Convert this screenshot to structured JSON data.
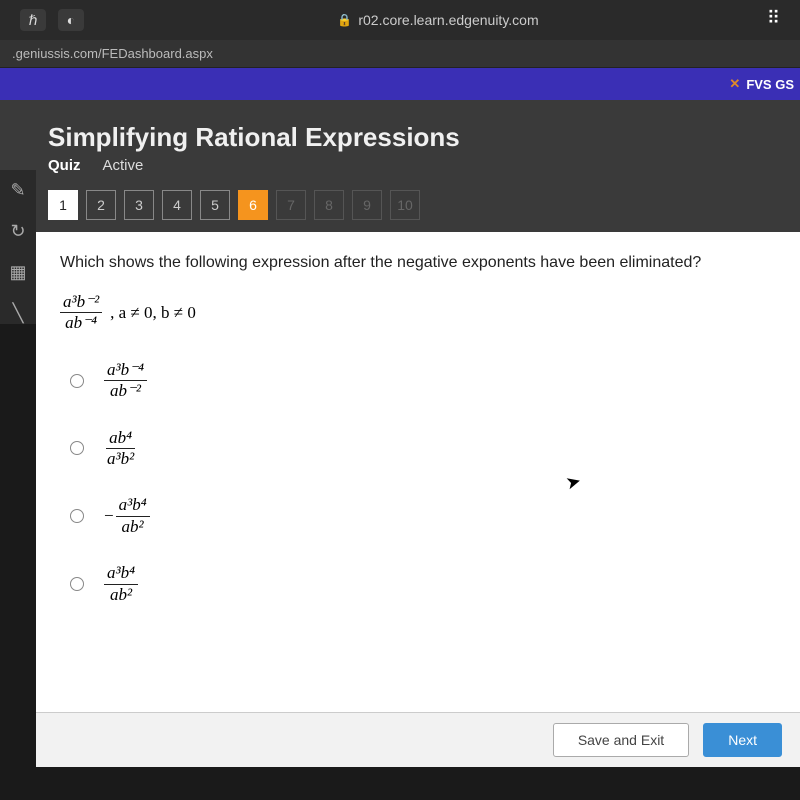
{
  "browser": {
    "url_display": "r02.core.learn.edgenuity.com",
    "address_bar": ".geniussis.com/FEDashboard.aspx"
  },
  "top_strip": {
    "label": "FVS GS"
  },
  "header": {
    "title": "Simplifying Rational Expressions",
    "sub_bold": "Quiz",
    "sub_reg": "Active",
    "questions": [
      {
        "n": "1",
        "state": "active-white"
      },
      {
        "n": "2",
        "state": ""
      },
      {
        "n": "3",
        "state": ""
      },
      {
        "n": "4",
        "state": ""
      },
      {
        "n": "5",
        "state": ""
      },
      {
        "n": "6",
        "state": "current"
      },
      {
        "n": "7",
        "state": "future"
      },
      {
        "n": "8",
        "state": "future"
      },
      {
        "n": "9",
        "state": "future"
      },
      {
        "n": "10",
        "state": "future"
      }
    ]
  },
  "question": {
    "prompt": "Which shows the following expression after the negative exponents have been eliminated?",
    "given_numerator": "a³b⁻²",
    "given_denominator": "ab⁻⁴",
    "condition": ", a ≠ 0, b ≠ 0",
    "options": [
      {
        "num": "a³b⁻⁴",
        "den": "ab⁻²",
        "neg": false
      },
      {
        "num": "ab⁴",
        "den": "a³b²",
        "neg": false
      },
      {
        "num": "a³b⁴",
        "den": "ab²",
        "neg": true
      },
      {
        "num": "a³b⁴",
        "den": "ab²",
        "neg": false
      }
    ]
  },
  "buttons": {
    "save": "Save and Exit",
    "next": "Next"
  },
  "colors": {
    "accent_orange": "#f5941e",
    "nav_purple": "#3a2fb5",
    "next_blue": "#3a8fd6",
    "panel_bg": "#3a3a3a"
  }
}
